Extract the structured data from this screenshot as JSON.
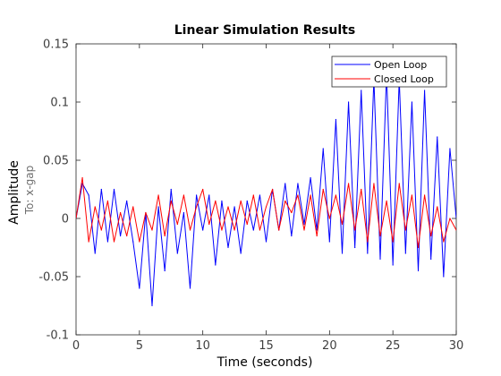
{
  "chart_data": {
    "type": "line",
    "title": "Linear Simulation Results",
    "xlabel": "Time (seconds)",
    "ylabel": "Amplitude",
    "ylabel_sub": "To: x-gap",
    "xlim": [
      0,
      30
    ],
    "ylim": [
      -0.1,
      0.15
    ],
    "xticks": [
      0,
      5,
      10,
      15,
      20,
      25,
      30
    ],
    "xtick_labels": [
      "0",
      "5",
      "10",
      "15",
      "20",
      "25",
      "30"
    ],
    "yticks": [
      -0.1,
      -0.05,
      0,
      0.05,
      0.1,
      0.15
    ],
    "ytick_labels": [
      "-0.1",
      "-0.05",
      "0",
      "0.05",
      "0.1",
      "0.15"
    ],
    "grid": false,
    "legend_position": "top-right",
    "x": [
      0,
      0.5,
      1,
      1.5,
      2,
      2.5,
      3,
      3.5,
      4,
      4.5,
      5,
      5.5,
      6,
      6.5,
      7,
      7.5,
      8,
      8.5,
      9,
      9.5,
      10,
      10.5,
      11,
      11.5,
      12,
      12.5,
      13,
      13.5,
      14,
      14.5,
      15,
      15.5,
      16,
      16.5,
      17,
      17.5,
      18,
      18.5,
      19,
      19.5,
      20,
      20.5,
      21,
      21.5,
      22,
      22.5,
      23,
      23.5,
      24,
      24.5,
      25,
      25.5,
      26,
      26.5,
      27,
      27.5,
      28,
      28.5,
      29,
      29.5,
      30
    ],
    "series": [
      {
        "name": "Open Loop",
        "color": "#0000ff",
        "values": [
          0.0,
          0.03,
          0.02,
          -0.03,
          0.025,
          -0.02,
          0.025,
          -0.015,
          0.015,
          -0.02,
          -0.06,
          0.005,
          -0.075,
          0.01,
          -0.045,
          0.025,
          -0.03,
          0.005,
          -0.06,
          0.02,
          -0.01,
          0.02,
          -0.04,
          0.015,
          -0.025,
          0.01,
          -0.03,
          0.015,
          -0.01,
          0.02,
          -0.02,
          0.025,
          -0.01,
          0.03,
          -0.015,
          0.03,
          -0.005,
          0.035,
          -0.01,
          0.06,
          -0.02,
          0.085,
          -0.03,
          0.1,
          -0.025,
          0.11,
          -0.03,
          0.12,
          -0.035,
          0.125,
          -0.04,
          0.12,
          -0.03,
          0.1,
          -0.045,
          0.11,
          -0.035,
          0.07,
          -0.05,
          0.06,
          0.0
        ]
      },
      {
        "name": "Closed Loop",
        "color": "#ff0000",
        "values": [
          0.0,
          0.035,
          -0.02,
          0.01,
          -0.01,
          0.015,
          -0.02,
          0.005,
          -0.015,
          0.01,
          -0.02,
          0.005,
          -0.01,
          0.02,
          -0.015,
          0.015,
          -0.005,
          0.02,
          -0.01,
          0.01,
          0.025,
          -0.005,
          0.015,
          -0.01,
          0.01,
          -0.01,
          0.015,
          -0.005,
          0.02,
          -0.01,
          0.01,
          0.025,
          -0.01,
          0.015,
          0.005,
          0.02,
          -0.01,
          0.02,
          -0.015,
          0.025,
          0.0,
          0.02,
          -0.005,
          0.03,
          -0.01,
          0.025,
          -0.02,
          0.03,
          -0.015,
          0.015,
          -0.02,
          0.03,
          -0.01,
          0.02,
          -0.025,
          0.02,
          -0.015,
          0.01,
          -0.02,
          0.0,
          -0.01
        ]
      }
    ]
  }
}
